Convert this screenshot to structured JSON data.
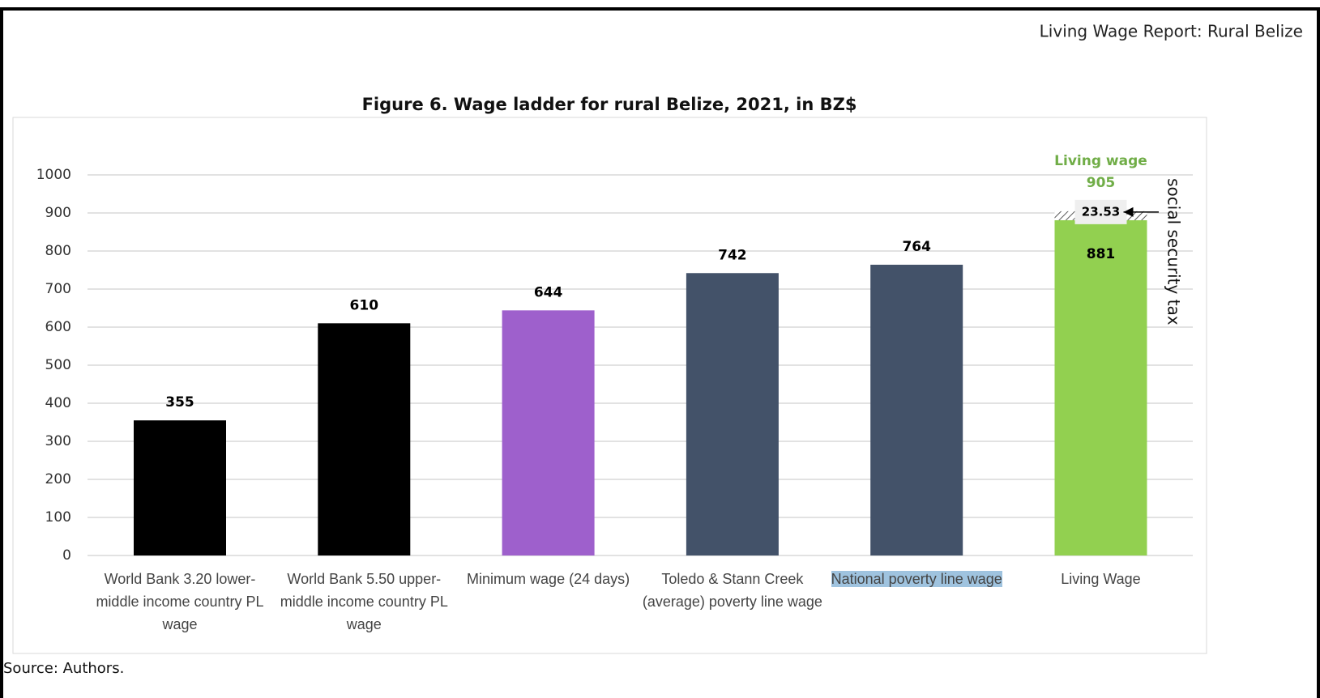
{
  "header": "Living Wage Report: Rural Belize",
  "source": "Source: Authors.",
  "chart_data": {
    "type": "bar",
    "title": "Figure 6. Wage ladder for rural Belize, 2021, in BZ$",
    "categories": [
      "World Bank 3.20 lower-middle income country PL wage",
      "World Bank 5.50 upper-middle income country PL wage",
      "Minimum wage (24 days)",
      "Toledo & Stann Creek (average) poverty line wage",
      "National poverty line wage",
      "Living Wage"
    ],
    "series": [
      {
        "colors": [
          "#000000",
          "#000000",
          "#9e60cc",
          "#435269",
          "#435269",
          "#92d050"
        ],
        "values": [
          355,
          610,
          644,
          742,
          764,
          881
        ]
      },
      {
        "name": "social security tax",
        "color": "#92d050",
        "hatch": true,
        "values": [
          null,
          null,
          null,
          null,
          null,
          23.53
        ]
      }
    ],
    "annotation": {
      "label": "Living wage",
      "value": 905,
      "color": "#70ad47"
    },
    "ylim": [
      0,
      1000
    ],
    "yticks": [
      0,
      100,
      200,
      300,
      400,
      500,
      600,
      700,
      800,
      900,
      1000
    ],
    "grid": true
  }
}
